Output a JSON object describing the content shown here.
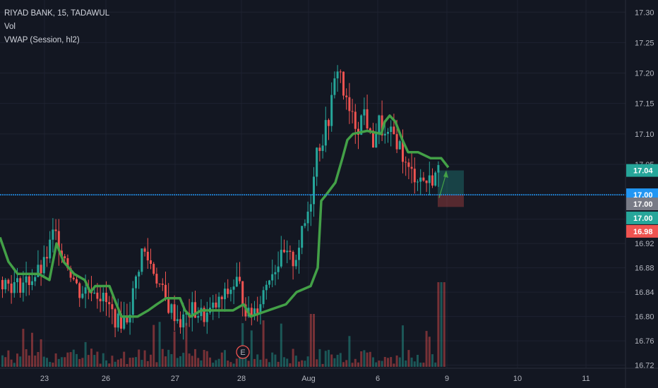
{
  "legend": {
    "symbol": "RIYAD BANK, 15, TADAWUL",
    "vol": "Vol",
    "vwap": "VWAP (Session, hl2)"
  },
  "colors": {
    "background": "#131722",
    "grid": "#1e2230",
    "up": "#26a69a",
    "down": "#ef5350",
    "vwap": "#43a047",
    "hline": "#2196f3",
    "axis_text": "#b2b5be"
  },
  "chart_data": {
    "type": "candlestick",
    "x_ticks": [
      "23",
      "26",
      "27",
      "28",
      "Aug",
      "6",
      "9",
      "10",
      "11"
    ],
    "y_ticks": [
      17.3,
      17.25,
      17.2,
      17.15,
      17.1,
      17.05,
      17.0,
      16.96,
      16.92,
      16.88,
      16.84,
      16.8,
      16.76,
      16.72
    ],
    "y_range": [
      16.715,
      17.32
    ],
    "grid": true,
    "horizontal_line": 17.0,
    "price_tags": [
      {
        "label": "17.04",
        "value": 17.04,
        "color": "#26a69a"
      },
      {
        "label": "17.00",
        "value": 17.0,
        "color": "#2196f3"
      },
      {
        "label": "17.00",
        "value": 16.985,
        "color": "#787b86"
      },
      {
        "label": "17.00",
        "value": 16.962,
        "color": "#26a69a"
      },
      {
        "label": "16.98",
        "value": 16.94,
        "color": "#ef5350"
      }
    ],
    "vwap_series": [
      [
        0,
        16.93
      ],
      [
        12,
        16.89
      ],
      [
        25,
        16.87
      ],
      [
        55,
        16.87
      ],
      [
        70,
        16.86
      ],
      [
        80,
        16.92
      ],
      [
        90,
        16.89
      ],
      [
        105,
        16.87
      ],
      [
        120,
        16.86
      ],
      [
        128,
        16.84
      ],
      [
        135,
        16.85
      ],
      [
        155,
        16.85
      ],
      [
        165,
        16.82
      ],
      [
        172,
        16.8
      ],
      [
        195,
        16.8
      ],
      [
        210,
        16.81
      ],
      [
        222,
        16.82
      ],
      [
        235,
        16.83
      ],
      [
        255,
        16.83
      ],
      [
        262,
        16.81
      ],
      [
        270,
        16.8
      ],
      [
        285,
        16.81
      ],
      [
        310,
        16.81
      ],
      [
        330,
        16.81
      ],
      [
        345,
        16.82
      ],
      [
        355,
        16.8
      ],
      [
        380,
        16.81
      ],
      [
        405,
        16.82
      ],
      [
        420,
        16.84
      ],
      [
        440,
        16.85
      ],
      [
        450,
        16.88
      ],
      [
        455,
        16.99
      ],
      [
        462,
        17.0
      ],
      [
        475,
        17.02
      ],
      [
        485,
        17.06
      ],
      [
        492,
        17.09
      ],
      [
        500,
        17.1
      ],
      [
        520,
        17.105
      ],
      [
        540,
        17.1
      ],
      [
        545,
        17.12
      ],
      [
        552,
        17.13
      ],
      [
        560,
        17.12
      ],
      [
        570,
        17.09
      ],
      [
        578,
        17.07
      ],
      [
        592,
        17.07
      ],
      [
        610,
        17.06
      ],
      [
        625,
        17.06
      ],
      [
        635,
        17.045
      ]
    ],
    "trade_box": {
      "x_start": 620,
      "x_end": 657,
      "entry": 17.0,
      "target": 17.04,
      "stop": 16.98
    }
  },
  "events": [
    {
      "label": "E"
    }
  ]
}
